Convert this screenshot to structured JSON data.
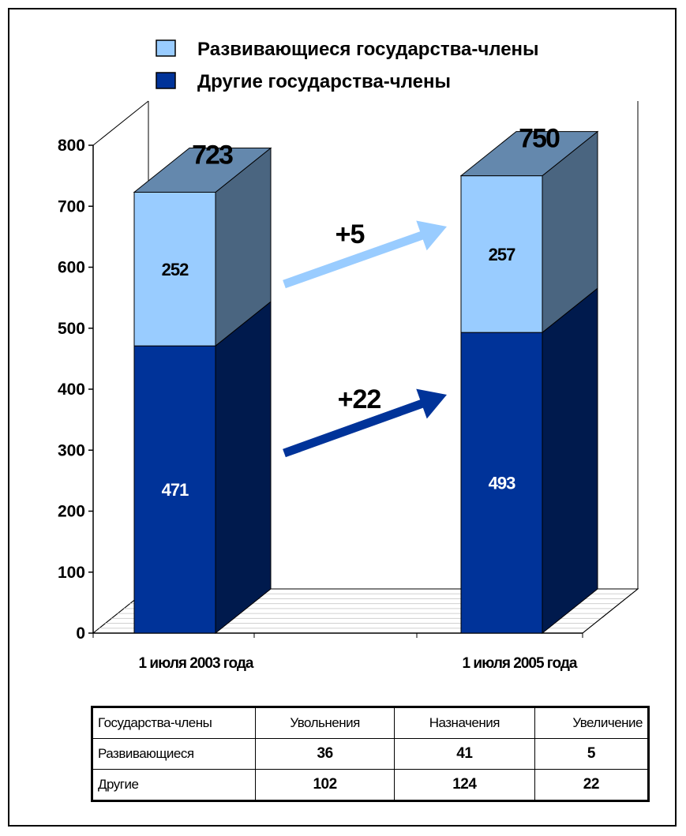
{
  "chart_data": {
    "type": "bar",
    "stacked": true,
    "three_d": true,
    "categories": [
      "1 июля 2003 года",
      "1 июля 2005 года"
    ],
    "series": [
      {
        "name": "Другие государства-члены",
        "values": [
          471,
          493
        ],
        "color": "#003399",
        "side_color": "#001a4d",
        "label_color": "#ffffff"
      },
      {
        "name": "Развивающиеся государства-члены",
        "values": [
          252,
          257
        ],
        "color": "#99ccff",
        "side_color": "#4a6580",
        "label_color": "#000000"
      }
    ],
    "totals": [
      "723",
      "750"
    ],
    "yticks": [
      "0",
      "100",
      "200",
      "300",
      "400",
      "500",
      "600",
      "700",
      "800"
    ],
    "ylim": [
      0,
      800
    ],
    "legend_position": "top",
    "annotations": [
      {
        "text": "+5",
        "color": "#99ccff",
        "series": "Развивающиеся государства-члены"
      },
      {
        "text": "+22",
        "color": "#003399",
        "series": "Другие государства-члены"
      }
    ]
  },
  "legend": {
    "items": [
      {
        "label": "Развивающиеся государства-члены",
        "color": "#99ccff"
      },
      {
        "label": "Другие государства-члены",
        "color": "#003399"
      }
    ]
  },
  "table": {
    "headers": [
      "Государства-члены",
      "Увольнения",
      "Назначения",
      "Увеличение"
    ],
    "rows": [
      [
        "Развивающиеся",
        "36",
        "41",
        "5"
      ],
      [
        "Другие",
        "102",
        "124",
        "22"
      ]
    ]
  }
}
